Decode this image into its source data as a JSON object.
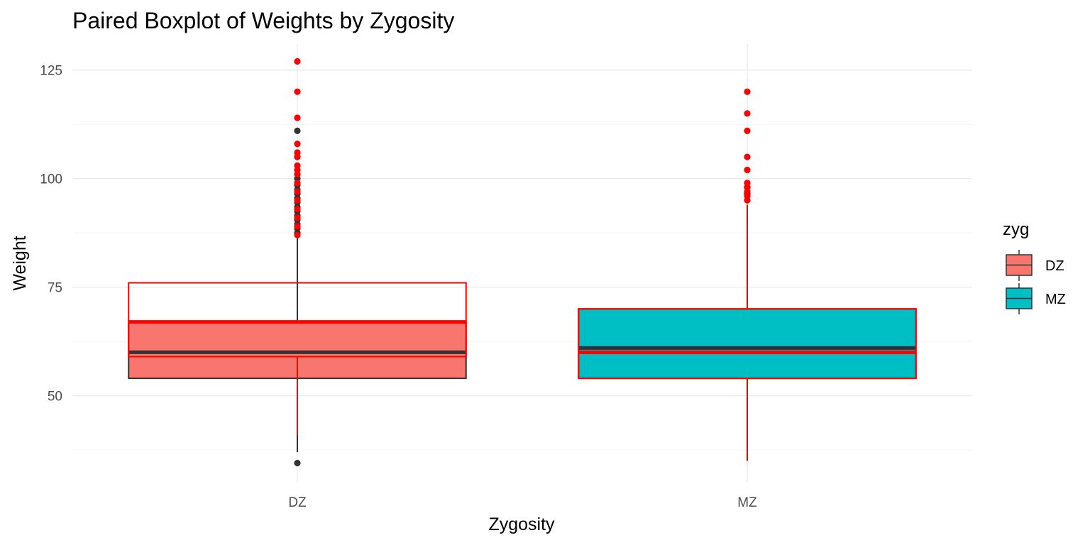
{
  "chart_data": {
    "type": "boxplot",
    "title": "Paired Boxplot of Weights by Zygosity",
    "xlabel": "Zygosity",
    "ylabel": "Weight",
    "categories": [
      "DZ",
      "MZ"
    ],
    "ylim": [
      30,
      131
    ],
    "yticks": [
      50,
      75,
      100,
      125
    ],
    "grid": true,
    "legend": {
      "title": "zyg",
      "placement": "right",
      "entries": [
        {
          "label": "DZ",
          "color": "#F8766D"
        },
        {
          "label": "MZ",
          "color": "#00BFC4"
        }
      ]
    },
    "series": [
      {
        "layer": "base",
        "boxes": [
          {
            "category": "DZ",
            "q1": 54,
            "median": 60,
            "q3": 67,
            "whisker_low": 37,
            "whisker_high": 87,
            "outliers": [
              34.5,
              87.5,
              88.5,
              89.5,
              90.5,
              91.5,
              92.5,
              93.5,
              94.5,
              95.5,
              96.5,
              97.5,
              98.5,
              100,
              111
            ]
          },
          {
            "category": "MZ",
            "q1": 54,
            "median": 61,
            "q3": 70,
            "whisker_low": 54,
            "whisker_high": 70,
            "outliers": [
              96.5,
              98
            ]
          }
        ],
        "box_stroke": "#333333"
      },
      {
        "layer": "overlay",
        "boxes": [
          {
            "category": "DZ",
            "q1": 59,
            "median": 67,
            "q3": 76,
            "whisker_low": 41,
            "whisker_high": 76,
            "outliers": [
              87,
              89,
              91,
              93,
              95,
              97,
              99,
              101,
              102,
              103,
              105,
              106,
              108,
              114,
              120,
              127
            ]
          },
          {
            "category": "MZ",
            "q1": 54,
            "median": 60,
            "q3": 70,
            "whisker_low": 35,
            "whisker_high": 94,
            "outliers": [
              95,
              96,
              97,
              98,
              99,
              102,
              105,
              111,
              115,
              120
            ]
          }
        ],
        "box_stroke": "#FF0000"
      }
    ],
    "colors": {
      "DZ": "#F8766D",
      "MZ": "#00BFC4",
      "base_line": "#333333",
      "overlay_line": "#FF0000",
      "grid_major": "#EBEBEB",
      "grid_minor": "#F4F4F4"
    }
  }
}
